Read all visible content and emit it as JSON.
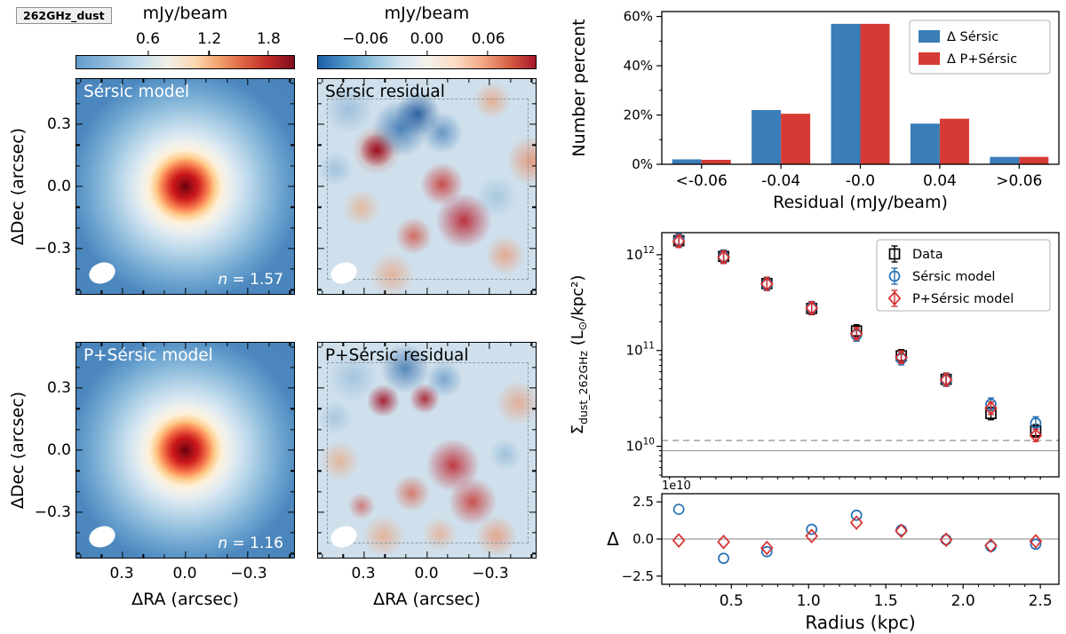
{
  "figure": {
    "tag_label": "262GHz_dust"
  },
  "colors": {
    "series_blue": "#3a7db8",
    "series_red": "#d63a34",
    "map_low": "#2166ac",
    "map_high": "#b2182b"
  },
  "maps": {
    "colorbar_model": {
      "title": "mJy/beam",
      "ticks": [
        "0.6",
        "1.2",
        "1.8"
      ],
      "tick_pos": [
        33,
        61,
        88
      ]
    },
    "colorbar_residual": {
      "title": "mJy/beam",
      "ticks": [
        "−0.06",
        "0.00",
        "0.06"
      ],
      "tick_pos": [
        22,
        50,
        78
      ]
    },
    "panels": [
      {
        "label": "Sérsic model",
        "annotation_var": "n",
        "annotation_rest": " = 1.57"
      },
      {
        "label": "Sérsic residual"
      },
      {
        "label": "P+Sérsic model",
        "annotation_var": "n",
        "annotation_rest": " = 1.16"
      },
      {
        "label": "P+Sérsic residual"
      }
    ],
    "x_label": "ΔRA (arcsec)",
    "y_label": "ΔDec (arcsec)",
    "x_ticks": [
      "0.3",
      "0.0",
      "−0.3"
    ],
    "y_ticks": [
      "0.3",
      "0.0",
      "−0.3"
    ]
  },
  "chart_data": [
    {
      "type": "bar",
      "xlabel": "Residual (mJy/beam)",
      "ylabel": "Number percent",
      "categories": [
        "<-0.06",
        "-0.04",
        "-0.0",
        "0.04",
        ">0.06"
      ],
      "series": [
        {
          "name": "Δ Sérsic",
          "color": "#3a7db8",
          "values": [
            2.0,
            22.0,
            57.0,
            16.5,
            3.0
          ]
        },
        {
          "name": "Δ P+Sérsic",
          "color": "#d63a34",
          "values": [
            1.8,
            20.5,
            57.0,
            18.5,
            3.0
          ]
        }
      ],
      "ylim": [
        0,
        62
      ],
      "yticks": [
        {
          "v": 0,
          "label": "0%"
        },
        {
          "v": 20,
          "label": "20%"
        },
        {
          "v": 40,
          "label": "40%"
        },
        {
          "v": 60,
          "label": "60%"
        }
      ],
      "legend_position": "upper right",
      "grid": false
    },
    {
      "type": "scatter",
      "yscale": "log",
      "ylabel_parts": {
        "sym": "Σ",
        "sub": "dust_262GHz",
        "l1": " (L",
        "sun": "⊙",
        "l2": "/kpc²)"
      },
      "xlim": [
        0.05,
        2.62
      ],
      "ylim": [
        4800000000.0,
        1700000000000.0
      ],
      "x": [
        0.16,
        0.45,
        0.73,
        1.02,
        1.31,
        1.6,
        1.89,
        2.18,
        2.47
      ],
      "series": [
        {
          "name": "Data",
          "marker": "square",
          "color": "#000000",
          "values": [
            1400000000000.0,
            960000000000.0,
            500000000000.0,
            275000000000.0,
            160000000000.0,
            88000000000.0,
            50000000000.0,
            22000000000.0,
            14500000000.0
          ]
        },
        {
          "name": "Sérsic model",
          "marker": "circle",
          "color": "#2470b3",
          "values": [
            1420000000000.0,
            950000000000.0,
            490000000000.0,
            280000000000.0,
            145000000000.0,
            82000000000.0,
            49000000000.0,
            27500000000.0,
            17500000000.0
          ]
        },
        {
          "name": "P+Sérsic model",
          "marker": "diamond",
          "color": "#d62f2f",
          "values": [
            1380000000000.0,
            940000000000.0,
            495000000000.0,
            278000000000.0,
            150000000000.0,
            85000000000.0,
            49500000000.0,
            25000000000.0,
            13000000000.0
          ]
        }
      ],
      "yticks": [
        {
          "exp": 12
        },
        {
          "exp": 11
        },
        {
          "exp": 10
        }
      ],
      "hlines": [
        {
          "v": 11500000000.0,
          "style": "dashed"
        },
        {
          "v": 9000000000.0,
          "style": "solid"
        }
      ],
      "legend_position": "upper right"
    },
    {
      "type": "scatter",
      "ylabel": "Δ",
      "offset_text": "1e10",
      "xlabel": "Radius (kpc)",
      "xlim": [
        0.05,
        2.62
      ],
      "ylim": [
        -30500000000.0,
        30500000000.0
      ],
      "x": [
        0.16,
        0.45,
        0.73,
        1.02,
        1.31,
        1.6,
        1.89,
        2.18,
        2.47
      ],
      "xticks": [
        {
          "v": 0.5,
          "label": "0.5"
        },
        {
          "v": 1.0,
          "label": "1.0"
        },
        {
          "v": 1.5,
          "label": "1.5"
        },
        {
          "v": 2.0,
          "label": "2.0"
        },
        {
          "v": 2.5,
          "label": "2.5"
        }
      ],
      "yticks": [
        {
          "v": 25000000000.0,
          "label": "2.5"
        },
        {
          "v": 0,
          "label": "0.0"
        },
        {
          "v": -25000000000.0,
          "label": "−2.5"
        }
      ],
      "hline": 0,
      "series": [
        {
          "name": "Sérsic model",
          "marker": "circle",
          "color": "#2470b3",
          "values": [
            20000000000.0,
            -13000000000.0,
            -8500000000.0,
            6500000000.0,
            16000000000.0,
            6000000000.0,
            -500000000.0,
            -5000000000.0,
            -3500000000.0
          ]
        },
        {
          "name": "P+Sérsic model",
          "marker": "diamond",
          "color": "#d62f2f",
          "values": [
            -1000000000.0,
            -2000000000.0,
            -6000000000.0,
            2000000000.0,
            11000000000.0,
            5500000000.0,
            -500000000.0,
            -4500000000.0,
            -1500000000.0
          ]
        }
      ]
    }
  ]
}
